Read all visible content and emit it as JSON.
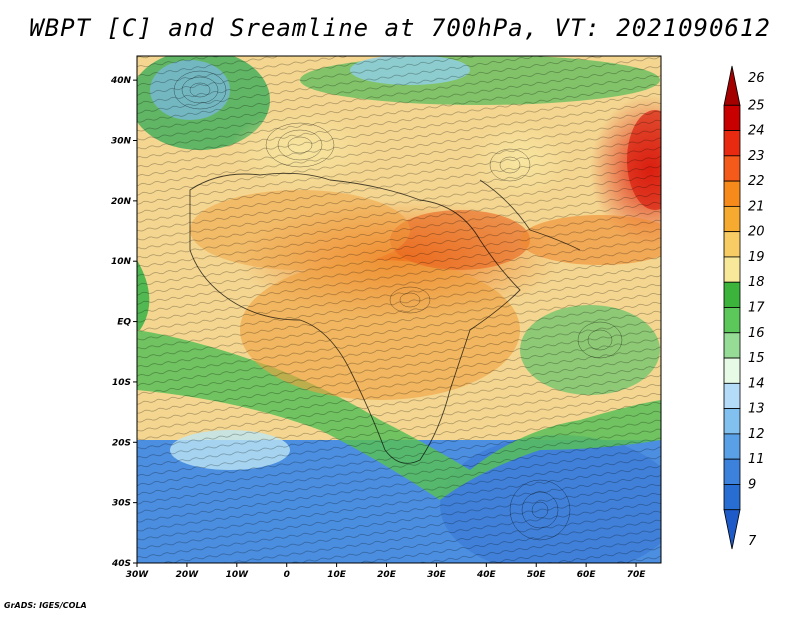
{
  "title": "WBPT [C] and Sreamline at 700hPa, VT: 2021090612",
  "credit": "GrADS: IGES/COLA",
  "map": {
    "lat_labels": [
      "40N",
      "30N",
      "20N",
      "10N",
      "EQ",
      "10S",
      "20S",
      "30S",
      "40S"
    ],
    "lat_values": [
      40,
      30,
      20,
      10,
      0,
      -10,
      -20,
      -30,
      -40
    ],
    "lon_labels": [
      "30W",
      "20W",
      "10W",
      "0",
      "10E",
      "20E",
      "30E",
      "40E",
      "50E",
      "60E",
      "70E"
    ],
    "lon_values": [
      -30,
      -20,
      -10,
      0,
      10,
      20,
      30,
      40,
      50,
      60,
      70
    ],
    "lat_range": [
      -40,
      44
    ],
    "lon_range": [
      -30,
      75
    ]
  },
  "colorbar": {
    "levels": [
      "26",
      "25",
      "24",
      "23",
      "22",
      "21",
      "20",
      "19",
      "18",
      "17",
      "16",
      "15",
      "14",
      "13",
      "12",
      "11",
      "9",
      "7"
    ],
    "colors": [
      "#a50000",
      "#c80000",
      "#e82a10",
      "#f45a1a",
      "#f68a1a",
      "#f6aa30",
      "#f8cc64",
      "#f8e89a",
      "#3cb43c",
      "#5cc85c",
      "#96dc96",
      "#e6fae6",
      "#b4dcf8",
      "#82c0f0",
      "#5aa0e6",
      "#3c82dc",
      "#286ed2",
      "#1e5ac8"
    ]
  }
}
